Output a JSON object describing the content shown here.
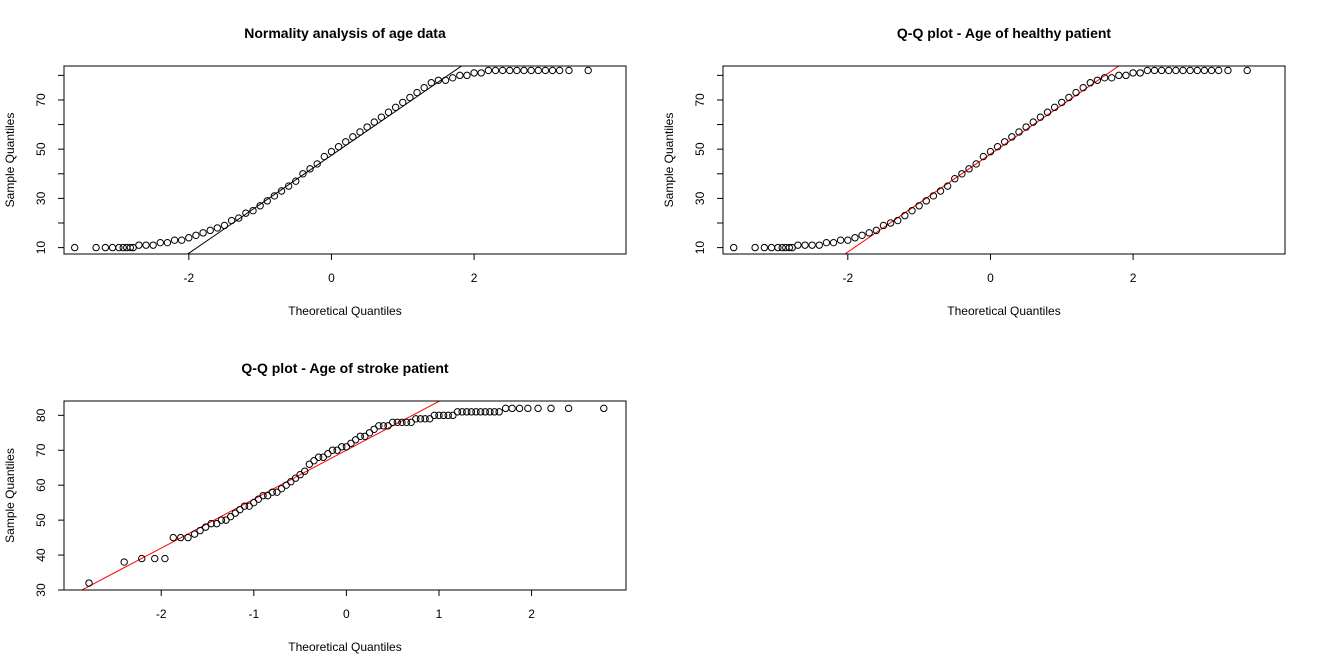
{
  "figure": {
    "background": "#ffffff"
  },
  "chart_data": [
    {
      "type": "scatter",
      "subtype": "qq-plot",
      "title": "Normality analysis of age data",
      "xlabel": "Theoretical Quantiles",
      "ylabel": "Sample Quantiles",
      "xlim": [
        -3.75,
        4.13
      ],
      "ylim": [
        7.4,
        83.8
      ],
      "xticks": [
        -2,
        0,
        2
      ],
      "yticks": [
        10,
        30,
        50,
        70
      ],
      "yminorticks": [
        20,
        40,
        60,
        80
      ],
      "ref_line": {
        "intercept": 47.5,
        "slope": 19.9,
        "color": "#000000"
      },
      "point_color": "#000000",
      "series": [
        {
          "x": [
            -3.6,
            -3.3,
            -3.17,
            -3.07,
            -2.98,
            -2.92,
            -2.87,
            -2.82,
            -2.78,
            -2.7,
            -2.6,
            -2.5,
            -2.4,
            -2.3,
            -2.2,
            -2.1,
            -2.0,
            -1.9,
            -1.8,
            -1.7,
            -1.6,
            -1.5,
            -1.4,
            -1.3,
            -1.2,
            -1.1,
            -1.0,
            -0.9,
            -0.8,
            -0.7,
            -0.6,
            -0.5,
            -0.4,
            -0.3,
            -0.2,
            -0.1,
            0.0,
            0.1,
            0.2,
            0.3,
            0.4,
            0.5,
            0.6,
            0.7,
            0.8,
            0.9,
            1.0,
            1.1,
            1.2,
            1.3,
            1.4,
            1.5,
            1.6,
            1.7,
            1.8,
            1.9,
            2.0,
            2.1,
            2.2,
            2.3,
            2.4,
            2.5,
            2.6,
            2.7,
            2.8,
            2.9,
            3.0,
            3.1,
            3.2,
            3.33,
            3.6
          ],
          "y": [
            10,
            10,
            10,
            10,
            10,
            10,
            10,
            10,
            10,
            11,
            11,
            11,
            12,
            12,
            13,
            13,
            14,
            15,
            16,
            17,
            18,
            19,
            21,
            22,
            24,
            25,
            27,
            29,
            31,
            33,
            35,
            37,
            40,
            42,
            44,
            47,
            49,
            51,
            53,
            55,
            57,
            59,
            61,
            63,
            65,
            67,
            69,
            71,
            73,
            75,
            77,
            78,
            78,
            79,
            80,
            80,
            81,
            81,
            82,
            82,
            82,
            82,
            82,
            82,
            82,
            82,
            82,
            82,
            82,
            82,
            82
          ]
        }
      ]
    },
    {
      "type": "scatter",
      "subtype": "qq-plot",
      "title": "Q-Q plot - Age of healthy patient",
      "xlabel": "Theoretical Quantiles",
      "ylabel": "Sample Quantiles",
      "xlim": [
        -3.75,
        4.13
      ],
      "ylim": [
        7.4,
        83.8
      ],
      "xticks": [
        -2,
        0,
        2
      ],
      "yticks": [
        10,
        30,
        50,
        70
      ],
      "yminorticks": [
        20,
        40,
        60,
        80
      ],
      "ref_line": {
        "intercept": 48,
        "slope": 19.9,
        "color": "#ff0000"
      },
      "point_color": "#000000",
      "series": [
        {
          "x": [
            -3.6,
            -3.3,
            -3.17,
            -3.07,
            -2.98,
            -2.92,
            -2.87,
            -2.82,
            -2.78,
            -2.7,
            -2.6,
            -2.5,
            -2.4,
            -2.3,
            -2.2,
            -2.1,
            -2.0,
            -1.9,
            -1.8,
            -1.7,
            -1.6,
            -1.5,
            -1.4,
            -1.3,
            -1.2,
            -1.1,
            -1.0,
            -0.9,
            -0.8,
            -0.7,
            -0.6,
            -0.5,
            -0.4,
            -0.3,
            -0.2,
            -0.1,
            0.0,
            0.1,
            0.2,
            0.3,
            0.4,
            0.5,
            0.6,
            0.7,
            0.8,
            0.9,
            1.0,
            1.1,
            1.2,
            1.3,
            1.4,
            1.5,
            1.6,
            1.7,
            1.8,
            1.9,
            2.0,
            2.1,
            2.2,
            2.3,
            2.4,
            2.5,
            2.6,
            2.7,
            2.8,
            2.9,
            3.0,
            3.1,
            3.2,
            3.33,
            3.6
          ],
          "y": [
            10,
            10,
            10,
            10,
            10,
            10,
            10,
            10,
            10,
            11,
            11,
            11,
            11,
            12,
            12,
            13,
            13,
            14,
            15,
            16,
            17,
            19,
            20,
            21,
            23,
            25,
            27,
            29,
            31,
            33,
            35,
            38,
            40,
            42,
            44,
            47,
            49,
            51,
            53,
            55,
            57,
            59,
            61,
            63,
            65,
            67,
            69,
            71,
            73,
            75,
            77,
            78,
            79,
            79,
            80,
            80,
            81,
            81,
            82,
            82,
            82,
            82,
            82,
            82,
            82,
            82,
            82,
            82,
            82,
            82,
            82
          ]
        }
      ]
    },
    {
      "type": "scatter",
      "subtype": "qq-plot",
      "title": "Q-Q plot - Age of stroke patient",
      "xlabel": "Theoretical Quantiles",
      "ylabel": "Sample Quantiles",
      "xlim": [
        -3.05,
        3.02
      ],
      "ylim": [
        30,
        84.1
      ],
      "xticks": [
        -2,
        -1,
        0,
        1,
        2
      ],
      "yticks": [
        30,
        40,
        50,
        60,
        70,
        80
      ],
      "yminorticks": [],
      "ref_line": {
        "intercept": 70,
        "slope": 14,
        "color": "#ff0000"
      },
      "point_color": "#000000",
      "series": [
        {
          "x": [
            -2.78,
            -2.4,
            -2.21,
            -2.07,
            -1.96,
            -1.87,
            -1.79,
            -1.71,
            -1.64,
            -1.58,
            -1.52,
            -1.46,
            -1.4,
            -1.35,
            -1.3,
            -1.25,
            -1.2,
            -1.15,
            -1.1,
            -1.05,
            -1.0,
            -0.95,
            -0.9,
            -0.85,
            -0.8,
            -0.75,
            -0.7,
            -0.65,
            -0.6,
            -0.55,
            -0.5,
            -0.45,
            -0.4,
            -0.35,
            -0.3,
            -0.25,
            -0.2,
            -0.15,
            -0.1,
            -0.05,
            0.0,
            0.05,
            0.1,
            0.15,
            0.2,
            0.25,
            0.3,
            0.35,
            0.4,
            0.45,
            0.5,
            0.55,
            0.6,
            0.65,
            0.7,
            0.75,
            0.8,
            0.85,
            0.9,
            0.95,
            1.0,
            1.05,
            1.1,
            1.15,
            1.2,
            1.25,
            1.3,
            1.35,
            1.4,
            1.45,
            1.5,
            1.55,
            1.6,
            1.65,
            1.72,
            1.79,
            1.87,
            1.96,
            2.07,
            2.21,
            2.4,
            2.78
          ],
          "y": [
            32,
            38,
            39,
            39,
            39,
            45,
            45,
            45,
            46,
            47,
            48,
            49,
            49,
            50,
            50,
            51,
            52,
            53,
            54,
            54,
            55,
            56,
            57,
            57,
            58,
            58,
            59,
            60,
            61,
            62,
            63,
            64,
            66,
            67,
            68,
            68,
            69,
            70,
            70,
            71,
            71,
            72,
            73,
            74,
            74,
            75,
            76,
            77,
            77,
            77,
            78,
            78,
            78,
            78,
            78,
            79,
            79,
            79,
            79,
            80,
            80,
            80,
            80,
            80,
            81,
            81,
            81,
            81,
            81,
            81,
            81,
            81,
            81,
            81,
            82,
            82,
            82,
            82,
            82,
            82,
            82,
            82
          ]
        }
      ]
    }
  ]
}
